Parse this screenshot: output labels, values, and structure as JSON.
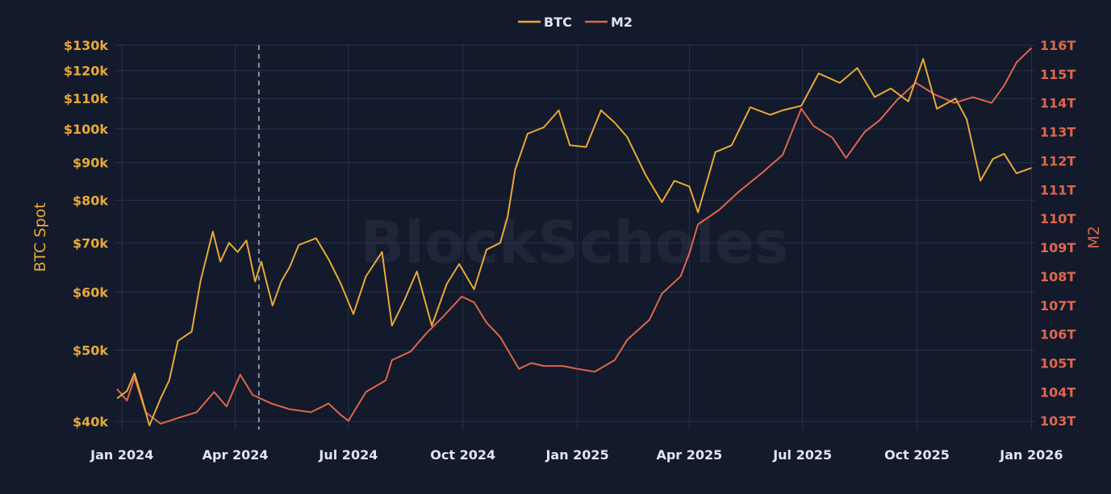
{
  "chart_data": {
    "type": "line",
    "title": "",
    "watermark": "BlockScholes",
    "legend": {
      "placement": "top-center",
      "entries": [
        "BTC",
        "M2"
      ]
    },
    "grid": true,
    "colors": {
      "background": "#121a2c",
      "grid": "#27334d",
      "btc": "#e9a935",
      "m2": "#e0664a",
      "marker": "#8a93a6"
    },
    "xaxis": {
      "type": "date",
      "range": [
        "2023-12-26",
        "2026-01-04"
      ],
      "ticks": [
        {
          "date": "2024-01-01",
          "label": "Jan 2024"
        },
        {
          "date": "2024-04-01",
          "label": "Apr 2024"
        },
        {
          "date": "2024-07-01",
          "label": "Jul 2024"
        },
        {
          "date": "2024-10-01",
          "label": "Oct 2024"
        },
        {
          "date": "2025-01-01",
          "label": "Jan 2025"
        },
        {
          "date": "2025-04-01",
          "label": "Apr 2025"
        },
        {
          "date": "2025-07-01",
          "label": "Jul 2025"
        },
        {
          "date": "2025-10-01",
          "label": "Oct 2025"
        },
        {
          "date": "2026-01-01",
          "label": "Jan 2026"
        }
      ]
    },
    "yaxis_left": {
      "title": "BTC Spot",
      "scale": "log",
      "range": [
        39000,
        130000
      ],
      "ticks": [
        {
          "value": 40000,
          "label": "$40k"
        },
        {
          "value": 50000,
          "label": "$50k"
        },
        {
          "value": 60000,
          "label": "$60k"
        },
        {
          "value": 70000,
          "label": "$70k"
        },
        {
          "value": 80000,
          "label": "$80k"
        },
        {
          "value": 90000,
          "label": "$90k"
        },
        {
          "value": 100000,
          "label": "$100k"
        },
        {
          "value": 110000,
          "label": "$110k"
        },
        {
          "value": 120000,
          "label": "$120k"
        },
        {
          "value": 130000,
          "label": "$130k"
        }
      ]
    },
    "yaxis_right": {
      "title": "M2",
      "scale": "linear",
      "range": [
        102.7,
        116
      ],
      "ticks": [
        {
          "value": 103,
          "label": "103T"
        },
        {
          "value": 104,
          "label": "104T"
        },
        {
          "value": 105,
          "label": "105T"
        },
        {
          "value": 106,
          "label": "106T"
        },
        {
          "value": 107,
          "label": "107T"
        },
        {
          "value": 108,
          "label": "108T"
        },
        {
          "value": 109,
          "label": "109T"
        },
        {
          "value": 110,
          "label": "110T"
        },
        {
          "value": 111,
          "label": "111T"
        },
        {
          "value": 112,
          "label": "112T"
        },
        {
          "value": 113,
          "label": "113T"
        },
        {
          "value": 114,
          "label": "114T"
        },
        {
          "value": 115,
          "label": "115T"
        },
        {
          "value": 116,
          "label": "116T"
        }
      ]
    },
    "marker_line": {
      "date": "2024-04-20",
      "style": "dashed"
    },
    "series": [
      {
        "name": "BTC",
        "axis": "left",
        "points": [
          [
            "2023-12-28",
            43000
          ],
          [
            "2024-01-05",
            44000
          ],
          [
            "2024-01-11",
            46500
          ],
          [
            "2024-01-17",
            43000
          ],
          [
            "2024-01-23",
            39500
          ],
          [
            "2024-02-01",
            43000
          ],
          [
            "2024-02-08",
            45500
          ],
          [
            "2024-02-15",
            51500
          ],
          [
            "2024-02-26",
            53000
          ],
          [
            "2024-03-04",
            62000
          ],
          [
            "2024-03-14",
            72500
          ],
          [
            "2024-03-20",
            66000
          ],
          [
            "2024-03-27",
            70000
          ],
          [
            "2024-04-03",
            68000
          ],
          [
            "2024-04-10",
            70500
          ],
          [
            "2024-04-17",
            62000
          ],
          [
            "2024-04-22",
            66000
          ],
          [
            "2024-05-01",
            57500
          ],
          [
            "2024-05-08",
            62000
          ],
          [
            "2024-05-15",
            65000
          ],
          [
            "2024-05-22",
            69500
          ],
          [
            "2024-06-05",
            71000
          ],
          [
            "2024-06-15",
            66500
          ],
          [
            "2024-06-25",
            61500
          ],
          [
            "2024-07-05",
            56000
          ],
          [
            "2024-07-15",
            63000
          ],
          [
            "2024-07-28",
            68000
          ],
          [
            "2024-08-05",
            54000
          ],
          [
            "2024-08-15",
            58500
          ],
          [
            "2024-08-25",
            64000
          ],
          [
            "2024-09-06",
            54000
          ],
          [
            "2024-09-18",
            61500
          ],
          [
            "2024-09-28",
            65500
          ],
          [
            "2024-10-10",
            60500
          ],
          [
            "2024-10-20",
            68500
          ],
          [
            "2024-10-31",
            70000
          ],
          [
            "2024-11-06",
            76000
          ],
          [
            "2024-11-12",
            88000
          ],
          [
            "2024-11-22",
            98500
          ],
          [
            "2024-12-05",
            100500
          ],
          [
            "2024-12-17",
            106000
          ],
          [
            "2024-12-26",
            95000
          ],
          [
            "2025-01-08",
            94500
          ],
          [
            "2025-01-20",
            106000
          ],
          [
            "2025-01-31",
            102000
          ],
          [
            "2025-02-10",
            97500
          ],
          [
            "2025-02-25",
            86500
          ],
          [
            "2025-03-10",
            79500
          ],
          [
            "2025-03-20",
            85000
          ],
          [
            "2025-04-01",
            83500
          ],
          [
            "2025-04-08",
            77000
          ],
          [
            "2025-04-22",
            93000
          ],
          [
            "2025-05-05",
            95000
          ],
          [
            "2025-05-20",
            107000
          ],
          [
            "2025-06-05",
            104500
          ],
          [
            "2025-06-15",
            106000
          ],
          [
            "2025-06-30",
            107500
          ],
          [
            "2025-07-14",
            119000
          ],
          [
            "2025-07-31",
            115500
          ],
          [
            "2025-08-14",
            121000
          ],
          [
            "2025-08-28",
            110500
          ],
          [
            "2025-09-10",
            113500
          ],
          [
            "2025-09-24",
            109000
          ],
          [
            "2025-10-06",
            124500
          ],
          [
            "2025-10-17",
            106500
          ],
          [
            "2025-11-01",
            110000
          ],
          [
            "2025-11-10",
            103000
          ],
          [
            "2025-11-21",
            85000
          ],
          [
            "2025-12-01",
            91000
          ],
          [
            "2025-12-10",
            92500
          ],
          [
            "2025-12-20",
            87000
          ],
          [
            "2026-01-01",
            88500
          ]
        ]
      },
      {
        "name": "M2",
        "axis": "right",
        "points": [
          [
            "2023-12-28",
            104.1
          ],
          [
            "2024-01-05",
            103.7
          ],
          [
            "2024-01-11",
            104.5
          ],
          [
            "2024-01-20",
            103.3
          ],
          [
            "2024-02-01",
            102.9
          ],
          [
            "2024-02-15",
            103.1
          ],
          [
            "2024-03-01",
            103.3
          ],
          [
            "2024-03-15",
            104.0
          ],
          [
            "2024-03-25",
            103.5
          ],
          [
            "2024-04-05",
            104.6
          ],
          [
            "2024-04-15",
            103.9
          ],
          [
            "2024-04-30",
            103.6
          ],
          [
            "2024-05-15",
            103.4
          ],
          [
            "2024-06-01",
            103.3
          ],
          [
            "2024-06-15",
            103.6
          ],
          [
            "2024-06-25",
            103.2
          ],
          [
            "2024-07-01",
            103.0
          ],
          [
            "2024-07-15",
            104.0
          ],
          [
            "2024-07-31",
            104.4
          ],
          [
            "2024-08-05",
            105.1
          ],
          [
            "2024-08-20",
            105.4
          ],
          [
            "2024-09-01",
            106.0
          ],
          [
            "2024-09-15",
            106.6
          ],
          [
            "2024-09-30",
            107.3
          ],
          [
            "2024-10-10",
            107.1
          ],
          [
            "2024-10-20",
            106.4
          ],
          [
            "2024-10-31",
            105.9
          ],
          [
            "2024-11-15",
            104.8
          ],
          [
            "2024-11-25",
            105.0
          ],
          [
            "2024-12-05",
            104.9
          ],
          [
            "2024-12-20",
            104.9
          ],
          [
            "2025-01-01",
            104.8
          ],
          [
            "2025-01-15",
            104.7
          ],
          [
            "2025-01-31",
            105.1
          ],
          [
            "2025-02-10",
            105.8
          ],
          [
            "2025-02-28",
            106.5
          ],
          [
            "2025-03-10",
            107.4
          ],
          [
            "2025-03-25",
            108.0
          ],
          [
            "2025-04-01",
            108.8
          ],
          [
            "2025-04-08",
            109.8
          ],
          [
            "2025-04-25",
            110.3
          ],
          [
            "2025-05-10",
            110.9
          ],
          [
            "2025-05-30",
            111.6
          ],
          [
            "2025-06-15",
            112.2
          ],
          [
            "2025-06-30",
            113.8
          ],
          [
            "2025-07-10",
            113.2
          ],
          [
            "2025-07-25",
            112.8
          ],
          [
            "2025-08-05",
            112.1
          ],
          [
            "2025-08-20",
            113.0
          ],
          [
            "2025-09-01",
            113.4
          ],
          [
            "2025-09-15",
            114.1
          ],
          [
            "2025-09-30",
            114.7
          ],
          [
            "2025-10-15",
            114.3
          ],
          [
            "2025-10-31",
            114.0
          ],
          [
            "2025-11-15",
            114.2
          ],
          [
            "2025-11-30",
            114.0
          ],
          [
            "2025-12-10",
            114.6
          ],
          [
            "2025-12-20",
            115.4
          ],
          [
            "2026-01-01",
            115.9
          ]
        ]
      }
    ]
  }
}
